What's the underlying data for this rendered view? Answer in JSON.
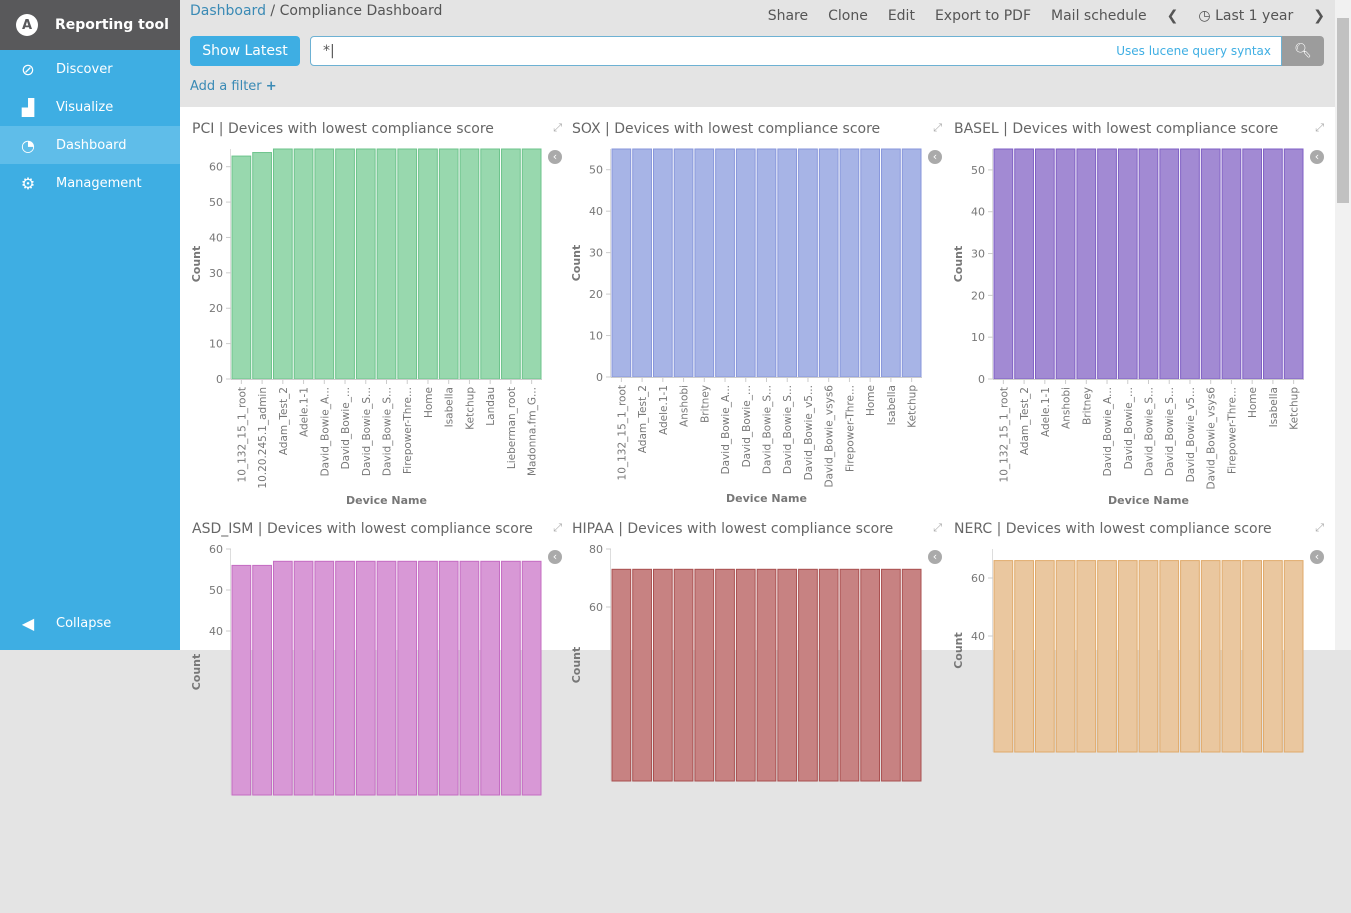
{
  "sidebar": {
    "brand": "Reporting tool",
    "items": [
      {
        "label": "Discover",
        "icon": "compass-icon"
      },
      {
        "label": "Visualize",
        "icon": "bar-chart-icon"
      },
      {
        "label": "Dashboard",
        "icon": "dashboard-icon",
        "active": true
      },
      {
        "label": "Management",
        "icon": "gear-icon"
      }
    ],
    "collapse": "Collapse"
  },
  "breadcrumb": {
    "parent": "Dashboard",
    "sep": "/",
    "current": "Compliance Dashboard"
  },
  "menu": {
    "share": "Share",
    "clone": "Clone",
    "edit": "Edit",
    "export": "Export to PDF",
    "mail": "Mail schedule",
    "time": "Last 1 year"
  },
  "query": {
    "show_latest": "Show Latest",
    "value": "*",
    "hint": "Uses lucene query syntax",
    "add_filter": "Add a filter"
  },
  "chart_data": [
    {
      "type": "bar",
      "title": "PCI | Devices with lowest compliance score",
      "xlabel": "Device Name",
      "ylabel": "Count",
      "ylim": [
        0,
        65
      ],
      "ticks": [
        0,
        10,
        20,
        30,
        40,
        50,
        60
      ],
      "color": "#98d8ae",
      "stroke": "#6cc38b",
      "categories": [
        "10_132_15_1_root",
        "10.20.245.1_admin",
        "Adam_Test_2",
        "Adele.1-1",
        "David_Bowie_A...",
        "David_Bowie_...",
        "David_Bowie_S...",
        "David_Bowie_S...",
        "Firepower-Thre...",
        "Home",
        "Isabella",
        "Ketchup",
        "Landau",
        "Lieberman_root",
        "Madonna.fm_G..."
      ],
      "values": [
        63,
        64,
        65,
        65,
        65,
        65,
        65,
        65,
        65,
        65,
        65,
        65,
        65,
        65,
        65
      ]
    },
    {
      "type": "bar",
      "title": "SOX | Devices with lowest compliance score",
      "xlabel": "Device Name",
      "ylabel": "Count",
      "ylim": [
        0,
        55
      ],
      "ticks": [
        0,
        10,
        20,
        30,
        40,
        50
      ],
      "color": "#a7b4e6",
      "stroke": "#8796db",
      "categories": [
        "10_132_15_1_root",
        "Adam_Test_2",
        "Adele.1-1",
        "Anshobi",
        "Britney",
        "David_Bowie_A...",
        "David_Bowie_...",
        "David_Bowie_S...",
        "David_Bowie_S...",
        "David_Bowie_v5...",
        "David_Bowie_vsys6",
        "Firepower-Thre...",
        "Home",
        "Isabella",
        "Ketchup"
      ],
      "values": [
        55,
        55,
        55,
        55,
        55,
        55,
        55,
        55,
        55,
        55,
        55,
        55,
        55,
        55,
        55
      ]
    },
    {
      "type": "bar",
      "title": "BASEL | Devices with lowest compliance score",
      "xlabel": "Device Name",
      "ylabel": "Count",
      "ylim": [
        0,
        55
      ],
      "ticks": [
        0,
        10,
        20,
        30,
        40,
        50
      ],
      "color": "#a28ad3",
      "stroke": "#7f5fc4",
      "categories": [
        "10_132_15_1_root",
        "Adam_Test_2",
        "Adele.1-1",
        "Anshobi",
        "Britney",
        "David_Bowie_A...",
        "David_Bowie_...",
        "David_Bowie_S...",
        "David_Bowie_S...",
        "David_Bowie_v5...",
        "David_Bowie_vsys6",
        "Firepower-Thre...",
        "Home",
        "Isabella",
        "Ketchup"
      ],
      "values": [
        55,
        55,
        55,
        55,
        55,
        55,
        55,
        55,
        55,
        55,
        55,
        55,
        55,
        55,
        55
      ]
    },
    {
      "type": "bar",
      "title": "ASD_ISM | Devices with lowest compliance score",
      "ylabel": "Count",
      "ylim": [
        0,
        60
      ],
      "ticks": [
        40,
        50,
        60
      ],
      "color": "#d898d6",
      "stroke": "#c46cc2",
      "values": [
        56,
        56,
        57,
        57,
        57,
        57,
        57,
        57,
        57,
        57,
        57,
        57,
        57,
        57,
        57
      ]
    },
    {
      "type": "bar",
      "title": "HIPAA | Devices with lowest compliance score",
      "ylabel": "Count",
      "ylim": [
        0,
        80
      ],
      "ticks": [
        60,
        80
      ],
      "color": "#c78282",
      "stroke": "#a94f4f",
      "values": [
        73,
        73,
        73,
        73,
        73,
        73,
        73,
        73,
        73,
        73,
        73,
        73,
        73,
        73,
        73
      ]
    },
    {
      "type": "bar",
      "title": "NERC | Devices with lowest compliance score",
      "ylabel": "Count",
      "ylim": [
        0,
        70
      ],
      "ticks": [
        40,
        60
      ],
      "color": "#eac79f",
      "stroke": "#e0aa6a",
      "values": [
        66,
        66,
        66,
        66,
        66,
        66,
        66,
        66,
        66,
        66,
        66,
        66,
        66,
        66,
        66
      ]
    }
  ]
}
